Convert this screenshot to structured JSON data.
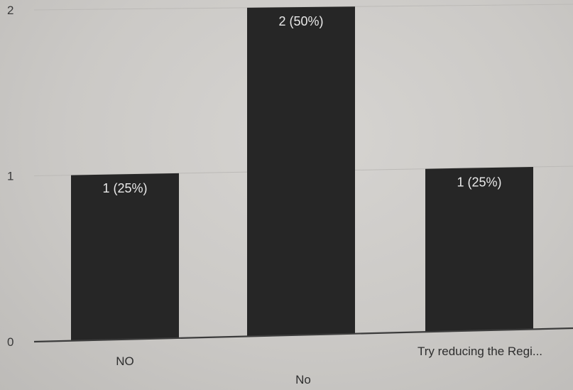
{
  "chart_data": {
    "type": "bar",
    "categories": [
      "NO",
      "No",
      "Try reducing the Regi..."
    ],
    "values": [
      1,
      2,
      1
    ],
    "data_labels": [
      "1 (25%)",
      "2 (50%)",
      "1 (25%)"
    ],
    "y_ticks": [
      "0",
      "1",
      "2"
    ],
    "ylim": [
      0,
      2
    ],
    "grid": true,
    "bar_color": "#262626",
    "title": "",
    "xlabel": "",
    "ylabel": ""
  }
}
